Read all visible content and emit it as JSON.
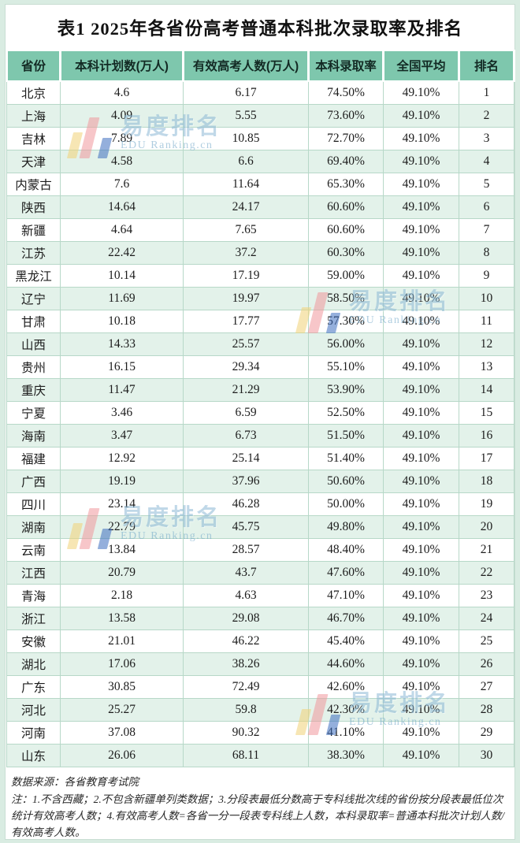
{
  "page": {
    "title": "表1 2025年各省份高考普通本科批次录取率及排名"
  },
  "colors": {
    "header_bg": "#7ec7ad",
    "row_alt_bg": "#e3f2ea",
    "cell_border": "#b7d8c8",
    "frame_bg": "#d9ece2",
    "watermark_blue": "#8db9d6",
    "logo_yellow": "#f2d377",
    "logo_pink": "#f1999d",
    "logo_blue": "#3e6fc0"
  },
  "watermark": {
    "text_cn": "易度排名",
    "text_en": "EDU Ranking.cn"
  },
  "notes": {
    "source": "数据来源：各省教育考试院",
    "remark": "注：1.不含西藏；2.不包含新疆单列类数据；3.分段表最低分数高于专科线批次线的省份按分段表最低位次统计有效高考人数；4.有效高考人数=各省一分一段表专科线上人数，本科录取率=普通本科批次计划人数/有效高考人数。"
  },
  "chart_data": {
    "type": "table",
    "title": "表1 2025年各省份高考普通本科批次录取率及排名",
    "columns": [
      "省份",
      "本科计划数(万人)",
      "有效高考人数(万人)",
      "本科录取率",
      "全国平均",
      "排名"
    ],
    "rows": [
      [
        "北京",
        "4.6",
        "6.17",
        "74.50%",
        "49.10%",
        "1"
      ],
      [
        "上海",
        "4.09",
        "5.55",
        "73.60%",
        "49.10%",
        "2"
      ],
      [
        "吉林",
        "7.89",
        "10.85",
        "72.70%",
        "49.10%",
        "3"
      ],
      [
        "天津",
        "4.58",
        "6.6",
        "69.40%",
        "49.10%",
        "4"
      ],
      [
        "内蒙古",
        "7.6",
        "11.64",
        "65.30%",
        "49.10%",
        "5"
      ],
      [
        "陕西",
        "14.64",
        "24.17",
        "60.60%",
        "49.10%",
        "6"
      ],
      [
        "新疆",
        "4.64",
        "7.65",
        "60.60%",
        "49.10%",
        "7"
      ],
      [
        "江苏",
        "22.42",
        "37.2",
        "60.30%",
        "49.10%",
        "8"
      ],
      [
        "黑龙江",
        "10.14",
        "17.19",
        "59.00%",
        "49.10%",
        "9"
      ],
      [
        "辽宁",
        "11.69",
        "19.97",
        "58.50%",
        "49.10%",
        "10"
      ],
      [
        "甘肃",
        "10.18",
        "17.77",
        "57.30%",
        "49.10%",
        "11"
      ],
      [
        "山西",
        "14.33",
        "25.57",
        "56.00%",
        "49.10%",
        "12"
      ],
      [
        "贵州",
        "16.15",
        "29.34",
        "55.10%",
        "49.10%",
        "13"
      ],
      [
        "重庆",
        "11.47",
        "21.29",
        "53.90%",
        "49.10%",
        "14"
      ],
      [
        "宁夏",
        "3.46",
        "6.59",
        "52.50%",
        "49.10%",
        "15"
      ],
      [
        "海南",
        "3.47",
        "6.73",
        "51.50%",
        "49.10%",
        "16"
      ],
      [
        "福建",
        "12.92",
        "25.14",
        "51.40%",
        "49.10%",
        "17"
      ],
      [
        "广西",
        "19.19",
        "37.96",
        "50.60%",
        "49.10%",
        "18"
      ],
      [
        "四川",
        "23.14",
        "46.28",
        "50.00%",
        "49.10%",
        "19"
      ],
      [
        "湖南",
        "22.79",
        "45.75",
        "49.80%",
        "49.10%",
        "20"
      ],
      [
        "云南",
        "13.84",
        "28.57",
        "48.40%",
        "49.10%",
        "21"
      ],
      [
        "江西",
        "20.79",
        "43.7",
        "47.60%",
        "49.10%",
        "22"
      ],
      [
        "青海",
        "2.18",
        "4.63",
        "47.10%",
        "49.10%",
        "23"
      ],
      [
        "浙江",
        "13.58",
        "29.08",
        "46.70%",
        "49.10%",
        "24"
      ],
      [
        "安徽",
        "21.01",
        "46.22",
        "45.40%",
        "49.10%",
        "25"
      ],
      [
        "湖北",
        "17.06",
        "38.26",
        "44.60%",
        "49.10%",
        "26"
      ],
      [
        "广东",
        "30.85",
        "72.49",
        "42.60%",
        "49.10%",
        "27"
      ],
      [
        "河北",
        "25.27",
        "59.8",
        "42.30%",
        "49.10%",
        "28"
      ],
      [
        "河南",
        "37.08",
        "90.32",
        "41.10%",
        "49.10%",
        "29"
      ],
      [
        "山东",
        "26.06",
        "68.11",
        "38.30%",
        "49.10%",
        "30"
      ]
    ]
  }
}
